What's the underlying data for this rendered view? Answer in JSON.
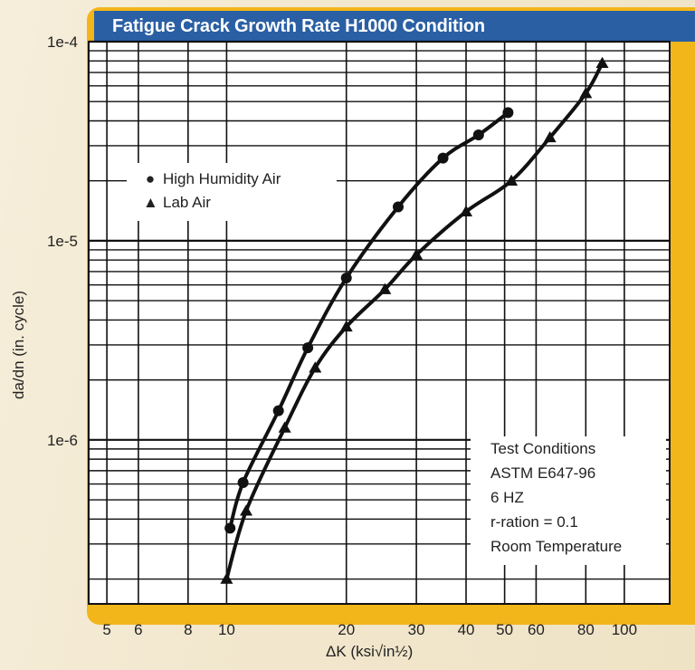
{
  "title": "Fatigue Crack Growth Rate H1000 Condition",
  "colors": {
    "title_bar": "#2a5fa4",
    "frame": "#f2b51a",
    "curve": "#111111"
  },
  "chart_data": {
    "type": "line",
    "title": "Fatigue Crack Growth Rate H1000 Condition",
    "xlabel": "ΔK (ksi√in½)",
    "ylabel": "da/dn (in. cycle)",
    "xscale": "log",
    "yscale": "log",
    "xlim": [
      4.5,
      130
    ],
    "ylim": [
      1.5e-07,
      0.0001
    ],
    "x_ticks": [
      "5",
      "6",
      "8",
      "10",
      "20",
      "30",
      "40",
      "50",
      "60",
      "80",
      "100"
    ],
    "y_ticks": [
      "1e-4",
      "1e-5",
      "1e-6"
    ],
    "grid": true,
    "legend_position": "upper-left",
    "series": [
      {
        "name": "High Humidity Air",
        "marker": "circle",
        "x": [
          10.2,
          11,
          13.5,
          16,
          20,
          27,
          35,
          43,
          51
        ],
        "y": [
          3.6e-07,
          6.1e-07,
          1.4e-06,
          2.9e-06,
          6.5e-06,
          1.48e-05,
          2.6e-05,
          3.4e-05,
          4.4e-05
        ]
      },
      {
        "name": "Lab Air",
        "marker": "triangle",
        "x": [
          10,
          11.2,
          14,
          16.7,
          20,
          25,
          30,
          40,
          52,
          65,
          80,
          88
        ],
        "y": [
          2e-07,
          4.4e-07,
          1.15e-06,
          2.3e-06,
          3.7e-06,
          5.7e-06,
          8.5e-06,
          1.4e-05,
          2e-05,
          3.3e-05,
          5.5e-05,
          7.8e-05
        ]
      }
    ]
  },
  "legend": {
    "items": [
      {
        "label": "High Humidity Air",
        "symbol": "●"
      },
      {
        "label": "Lab Air",
        "symbol": "▲"
      }
    ]
  },
  "test_conditions": {
    "lines": [
      "Test Conditions",
      "ASTM E647-96",
      "6 HZ",
      "r-ration = 0.1",
      "Room Temperature"
    ]
  }
}
